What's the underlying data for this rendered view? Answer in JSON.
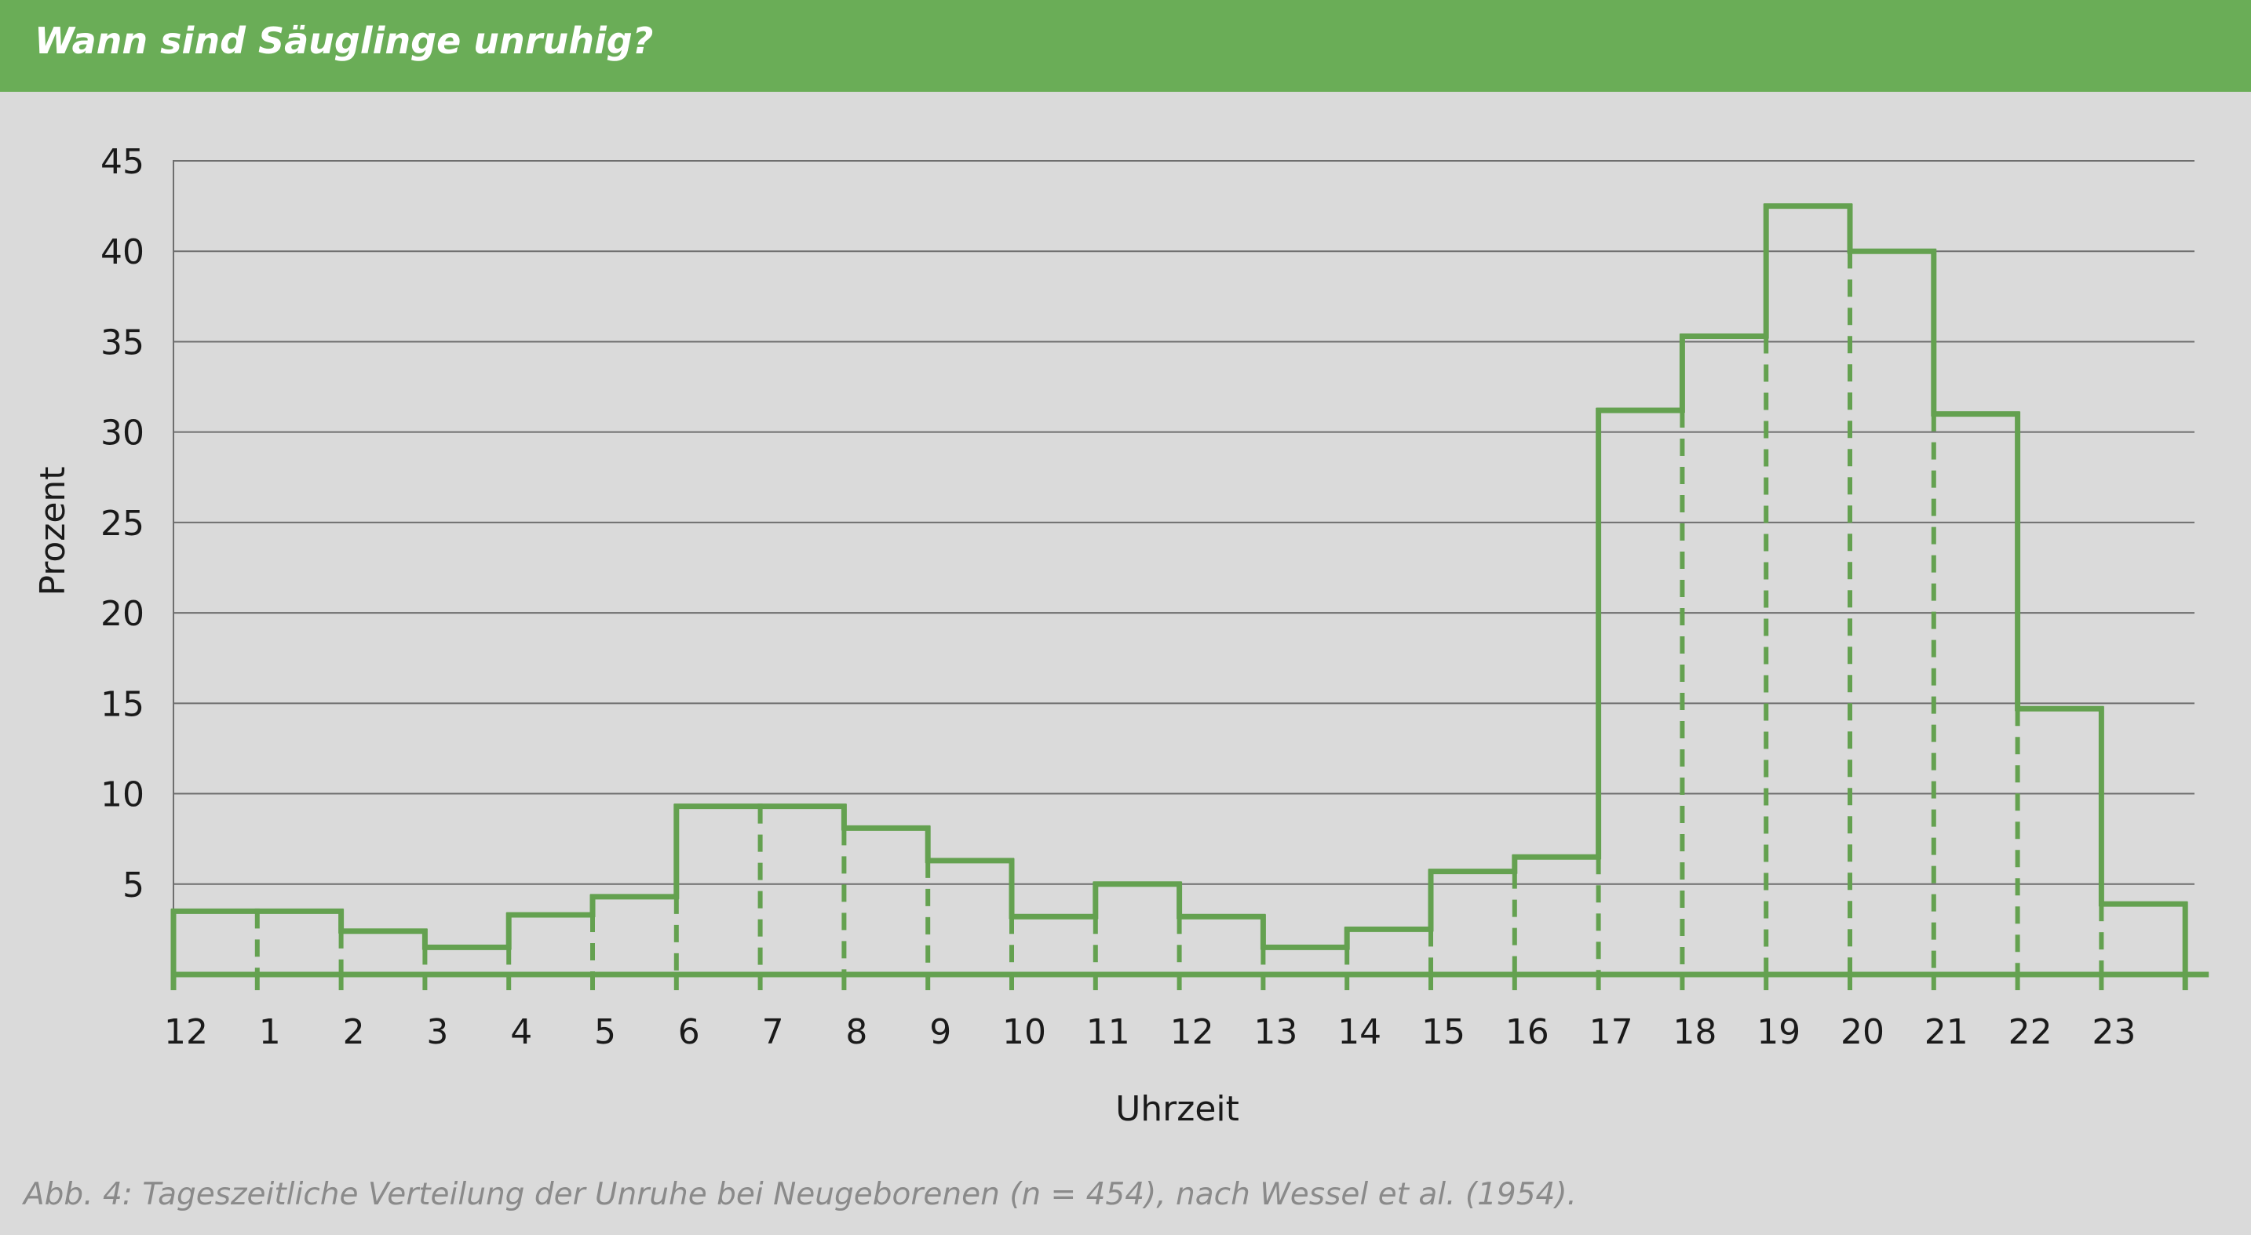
{
  "header": {
    "title": "Wann sind Säuglinge unruhig?"
  },
  "caption": "Abb. 4: Tageszeitliche Verteilung der Unruhe bei Neugeborenen (n = 454), nach Wessel et al. (1954).",
  "colors": {
    "header_bg": "#6aad57",
    "line": "#64a150",
    "grid": "#6e6e6e",
    "background": "#dadada"
  },
  "chart_data": {
    "type": "bar",
    "style": "step histogram with dashed interior dividers",
    "title": "",
    "xlabel": "Uhrzeit",
    "ylabel": "Prozent",
    "ylim": [
      0,
      45
    ],
    "yticks": [
      5,
      10,
      15,
      20,
      25,
      30,
      35,
      40,
      45
    ],
    "grid": true,
    "categories": [
      "12",
      "1",
      "2",
      "3",
      "4",
      "5",
      "6",
      "7",
      "8",
      "9",
      "10",
      "11",
      "12",
      "13",
      "14",
      "15",
      "16",
      "17",
      "18",
      "19",
      "20",
      "21",
      "22",
      "23"
    ],
    "values": [
      3.5,
      3.5,
      2.4,
      1.5,
      3.3,
      4.3,
      9.3,
      9.3,
      8.1,
      6.3,
      3.2,
      5.0,
      3.2,
      1.5,
      2.5,
      5.7,
      6.5,
      31.2,
      35.3,
      42.5,
      40.0,
      31.0,
      14.7,
      3.9
    ]
  }
}
